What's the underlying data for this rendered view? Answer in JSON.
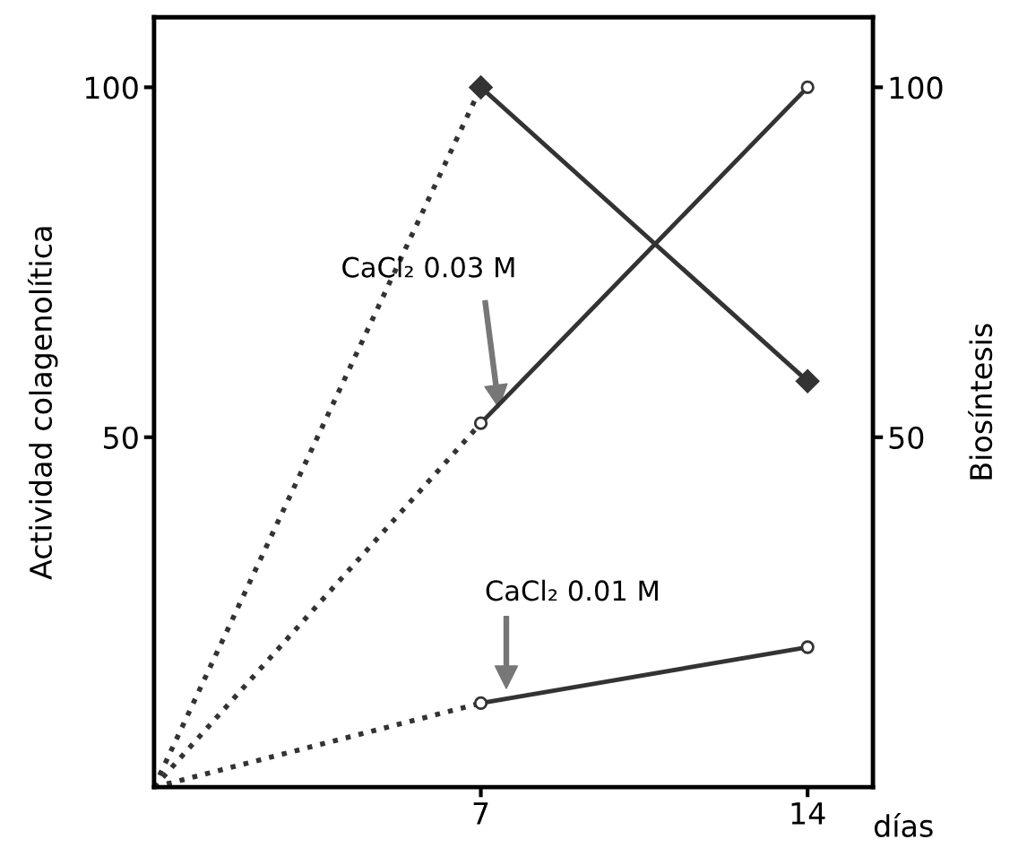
{
  "chart_data": {
    "type": "line",
    "xlabel": "días",
    "ylabel": "Actividad colagenolítica",
    "y2label": "Biosíntesis",
    "xlim": [
      0,
      15.4
    ],
    "xticks": [
      7,
      14
    ],
    "ylim": [
      0,
      110
    ],
    "yticks": [
      50,
      100
    ],
    "y2lim": [
      0,
      110
    ],
    "y2ticks": [
      50,
      100
    ],
    "series": [
      {
        "color": "#333333",
        "x": [
          0,
          7
        ],
        "values": [
          0,
          100
        ],
        "line_style": "dotted"
      },
      {
        "color": "#333333",
        "x": [
          7,
          14
        ],
        "values": [
          100,
          58
        ],
        "line_style": "solid",
        "marker": "diamond"
      },
      {
        "color": "#333333",
        "x": [
          0,
          7
        ],
        "values": [
          0,
          52
        ],
        "line_style": "dotted"
      },
      {
        "color": "#333333",
        "x": [
          7,
          14
        ],
        "values": [
          52,
          100
        ],
        "line_style": "solid",
        "marker": "circle"
      },
      {
        "color": "#333333",
        "x": [
          0,
          7
        ],
        "values": [
          0,
          12
        ],
        "line_style": "dotted"
      },
      {
        "color": "#333333",
        "x": [
          7,
          14
        ],
        "values": [
          12,
          20
        ],
        "line_style": "solid",
        "marker": "circle"
      }
    ],
    "annotations": [
      "CaCl₂ 0.03 M",
      "CaCl₂ 0.01 M"
    ],
    "grid": false
  }
}
